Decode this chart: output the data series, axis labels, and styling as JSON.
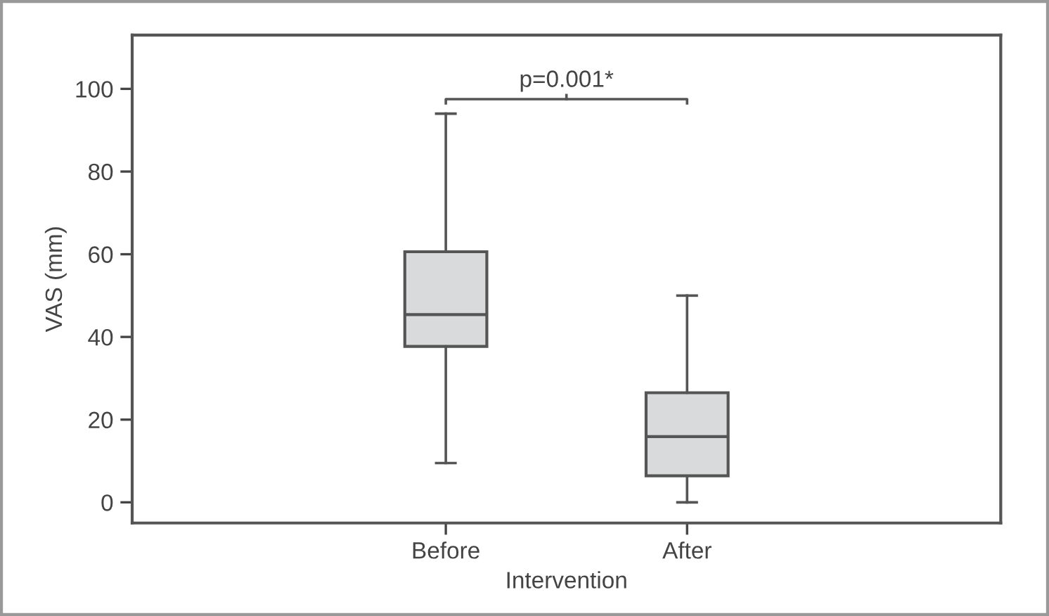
{
  "chart_data": {
    "type": "box",
    "xlabel": "Intervention",
    "ylabel": "VAS (mm)",
    "categories": [
      "Before",
      "After"
    ],
    "boxes": [
      {
        "low": 9.5,
        "q1": 37.7,
        "median": 45.4,
        "q3": 60.6,
        "high": 94
      },
      {
        "low": 0,
        "q1": 6.4,
        "median": 15.9,
        "q3": 26.5,
        "high": 50
      }
    ],
    "color": "#d9dadb",
    "ylim": [
      -5,
      113
    ],
    "yticks": [
      0,
      20,
      40,
      60,
      80,
      100
    ],
    "grid": false,
    "annotations": [
      "p=0.001*"
    ]
  }
}
